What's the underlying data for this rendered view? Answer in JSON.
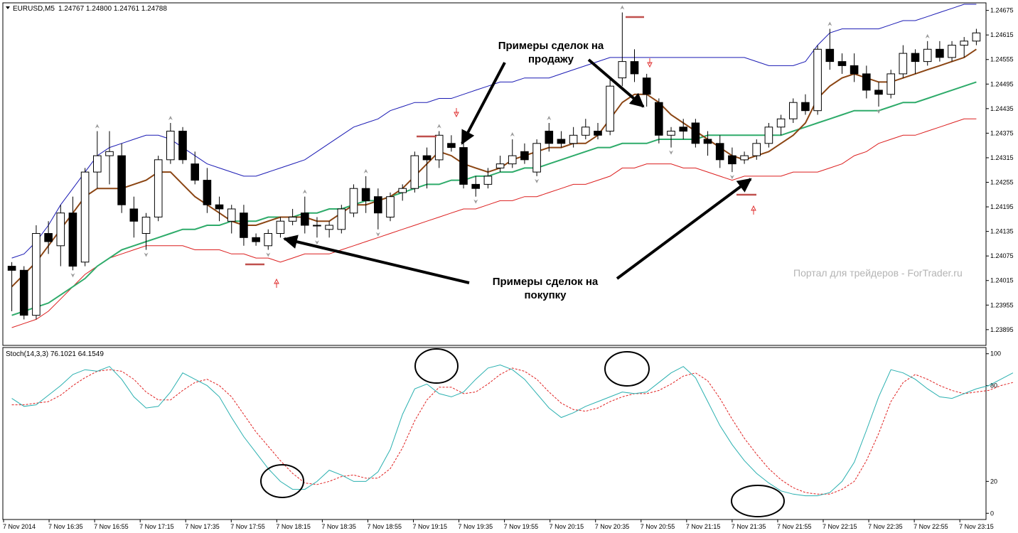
{
  "window": {
    "symbol_title": "EURUSD,M5",
    "ohlc_readout": "1.24767 1.24800 1.24761 1.24788",
    "watermark": "Портал для трейдеров - ForTrader.ru"
  },
  "annotations": {
    "sell_label_line1": "Примеры сделок на",
    "sell_label_line2": "продажу",
    "buy_label_line1": "Примеры сделок на",
    "buy_label_line2": "покупку"
  },
  "colors": {
    "upper_band": "#1a1ab4",
    "lower_band": "#dc1e1e",
    "ema_fast": "#8b4513",
    "ema_slow": "#2eab6a",
    "stoch_main": "#2ab0b0",
    "stoch_signal": "#e02020",
    "resistance_marker": "#c0504d",
    "arrow_sell": "#e03030",
    "arrow_buy": "#e03030",
    "candle_bull_fill": "#ffffff",
    "candle_bear_fill": "#000000"
  },
  "chart_data": [
    {
      "type": "candlestick",
      "title": "EURUSD,M5",
      "ylim": [
        1.2386,
        1.2469
      ],
      "y_ticks": [
        "1.24675",
        "1.24615",
        "1.24555",
        "1.24495",
        "1.24435",
        "1.24375",
        "1.24315",
        "1.24255",
        "1.24195",
        "1.24135",
        "1.24075",
        "1.24015",
        "1.23955",
        "1.23895"
      ],
      "x_ticks": [
        "7 Nov 2014",
        "7 Nov 16:35",
        "7 Nov 16:55",
        "7 Nov 17:15",
        "7 Nov 17:35",
        "7 Nov 17:55",
        "7 Nov 18:15",
        "7 Nov 18:35",
        "7 Nov 18:55",
        "7 Nov 19:15",
        "7 Nov 19:35",
        "7 Nov 19:55",
        "7 Nov 20:15",
        "7 Nov 20:35",
        "7 Nov 20:55",
        "7 Nov 21:15",
        "7 Nov 21:35",
        "7 Nov 21:55",
        "7 Nov 22:15",
        "7 Nov 22:35",
        "7 Nov 22:55",
        "7 Nov 23:15"
      ],
      "ohlc": [
        [
          1.2405,
          1.2406,
          1.2394,
          1.2404
        ],
        [
          1.2404,
          1.2405,
          1.2392,
          1.2393
        ],
        [
          1.2393,
          1.2415,
          1.2392,
          1.2413
        ],
        [
          1.2413,
          1.2416,
          1.2408,
          1.2411
        ],
        [
          1.241,
          1.242,
          1.2405,
          1.2418
        ],
        [
          1.2418,
          1.2422,
          1.2404,
          1.2405
        ],
        [
          1.2406,
          1.2429,
          1.2405,
          1.2428
        ],
        [
          1.2428,
          1.2438,
          1.2424,
          1.2432
        ],
        [
          1.2432,
          1.2438,
          1.2425,
          1.2433
        ],
        [
          1.2432,
          1.2435,
          1.2418,
          1.242
        ],
        [
          1.2419,
          1.2422,
          1.2412,
          1.2416
        ],
        [
          1.2413,
          1.2418,
          1.2409,
          1.2417
        ],
        [
          1.2417,
          1.2432,
          1.2416,
          1.2431
        ],
        [
          1.2431,
          1.244,
          1.243,
          1.2438
        ],
        [
          1.2438,
          1.2439,
          1.243,
          1.2431
        ],
        [
          1.243,
          1.2433,
          1.2425,
          1.2426
        ],
        [
          1.2426,
          1.2429,
          1.2418,
          1.242
        ],
        [
          1.242,
          1.2422,
          1.2416,
          1.2419
        ],
        [
          1.2416,
          1.242,
          1.2413,
          1.2419
        ],
        [
          1.2418,
          1.242,
          1.241,
          1.2412
        ],
        [
          1.2412,
          1.2413,
          1.241,
          1.2411
        ],
        [
          1.241,
          1.2414,
          1.2409,
          1.2413
        ],
        [
          1.2413,
          1.2417,
          1.2412,
          1.2416
        ],
        [
          1.2416,
          1.2419,
          1.2415,
          1.2417
        ],
        [
          1.2418,
          1.2422,
          1.2413,
          1.2415
        ],
        [
          1.2415,
          1.2417,
          1.2412,
          1.2415
        ],
        [
          1.2414,
          1.2416,
          1.2412,
          1.2415
        ],
        [
          1.2414,
          1.242,
          1.2413,
          1.2419
        ],
        [
          1.2418,
          1.2425,
          1.2417,
          1.2424
        ],
        [
          1.2424,
          1.2427,
          1.2418,
          1.2421
        ],
        [
          1.2422,
          1.2424,
          1.2414,
          1.2418
        ],
        [
          1.2417,
          1.2423,
          1.2416,
          1.2422
        ],
        [
          1.2423,
          1.2425,
          1.2421,
          1.2424
        ],
        [
          1.2424,
          1.2433,
          1.2423,
          1.2432
        ],
        [
          1.2432,
          1.2434,
          1.2424,
          1.2431
        ],
        [
          1.2431,
          1.2438,
          1.2429,
          1.2437
        ],
        [
          1.2435,
          1.2437,
          1.2433,
          1.2434
        ],
        [
          1.2434,
          1.2435,
          1.2424,
          1.2425
        ],
        [
          1.2425,
          1.2427,
          1.2422,
          1.2424
        ],
        [
          1.2425,
          1.2429,
          1.2424,
          1.2427
        ],
        [
          1.2429,
          1.2432,
          1.2428,
          1.243
        ],
        [
          1.243,
          1.2436,
          1.2429,
          1.2432
        ],
        [
          1.2433,
          1.2435,
          1.243,
          1.2431
        ],
        [
          1.2428,
          1.2436,
          1.2427,
          1.2435
        ],
        [
          1.2438,
          1.244,
          1.2433,
          1.2435
        ],
        [
          1.2436,
          1.2438,
          1.2434,
          1.2435
        ],
        [
          1.2435,
          1.2439,
          1.2434,
          1.2437
        ],
        [
          1.2437,
          1.2441,
          1.2436,
          1.2439
        ],
        [
          1.2438,
          1.244,
          1.2436,
          1.2437
        ],
        [
          1.2438,
          1.2451,
          1.2437,
          1.2449
        ],
        [
          1.2451,
          1.2467,
          1.2449,
          1.2455
        ],
        [
          1.2455,
          1.2458,
          1.245,
          1.2452
        ],
        [
          1.2451,
          1.2452,
          1.2444,
          1.2447
        ],
        [
          1.2445,
          1.2446,
          1.2435,
          1.2437
        ],
        [
          1.2437,
          1.2439,
          1.2434,
          1.2438
        ],
        [
          1.2439,
          1.2441,
          1.2436,
          1.2438
        ],
        [
          1.244,
          1.2441,
          1.2434,
          1.2435
        ],
        [
          1.2436,
          1.2438,
          1.2432,
          1.2435
        ],
        [
          1.2435,
          1.2437,
          1.2429,
          1.2431
        ],
        [
          1.2432,
          1.2434,
          1.2428,
          1.243
        ],
        [
          1.2431,
          1.2433,
          1.243,
          1.2432
        ],
        [
          1.2432,
          1.2436,
          1.2431,
          1.2435
        ],
        [
          1.2435,
          1.244,
          1.2434,
          1.2439
        ],
        [
          1.2439,
          1.2442,
          1.2437,
          1.2441
        ],
        [
          1.2441,
          1.2446,
          1.244,
          1.2445
        ],
        [
          1.2445,
          1.2447,
          1.2442,
          1.2443
        ],
        [
          1.2443,
          1.2459,
          1.2442,
          1.2458
        ],
        [
          1.2458,
          1.2463,
          1.2453,
          1.2455
        ],
        [
          1.2455,
          1.2457,
          1.2452,
          1.2454
        ],
        [
          1.2454,
          1.2457,
          1.245,
          1.2452
        ],
        [
          1.2452,
          1.2454,
          1.2446,
          1.2448
        ],
        [
          1.2448,
          1.245,
          1.2444,
          1.2447
        ],
        [
          1.2447,
          1.2453,
          1.2446,
          1.2452
        ],
        [
          1.2452,
          1.2459,
          1.2451,
          1.2457
        ],
        [
          1.2457,
          1.2458,
          1.2452,
          1.2455
        ],
        [
          1.2455,
          1.246,
          1.2454,
          1.2458
        ],
        [
          1.2458,
          1.246,
          1.2455,
          1.2456
        ],
        [
          1.2456,
          1.246,
          1.2455,
          1.2459
        ],
        [
          1.2459,
          1.2461,
          1.2456,
          1.246
        ],
        [
          1.246,
          1.2463,
          1.2459,
          1.2462
        ]
      ],
      "series": [
        {
          "values": [
            1.2407,
            1.2408,
            1.2411,
            1.2415,
            1.242,
            1.2424,
            1.2428,
            1.2432,
            1.2434,
            1.2435,
            1.2436,
            1.2437,
            1.2437,
            1.2436,
            1.2434,
            1.2432,
            1.243,
            1.2429,
            1.2428,
            1.2427,
            1.2427,
            1.2428,
            1.2429,
            1.243,
            1.2431,
            1.2433,
            1.2435,
            1.2437,
            1.2439,
            1.244,
            1.2441,
            1.2443,
            1.2444,
            1.2445,
            1.2445,
            1.2446,
            1.2446,
            1.2447,
            1.2448,
            1.2449,
            1.245,
            1.245,
            1.2451,
            1.2451,
            1.2451,
            1.2452,
            1.2453,
            1.2454,
            1.2455,
            1.2456,
            1.2456,
            1.2456,
            1.2456,
            1.2456,
            1.2456,
            1.2456,
            1.2456,
            1.2456,
            1.2456,
            1.2456,
            1.2456,
            1.2455,
            1.2454,
            1.2454,
            1.2454,
            1.2455,
            1.2459,
            1.2462,
            1.2463,
            1.2463,
            1.2463,
            1.2463,
            1.2464,
            1.2465,
            1.2465,
            1.2466,
            1.2467,
            1.2468,
            1.2469,
            1.2469
          ]
        },
        {
          "values": [
            1.239,
            1.2391,
            1.2392,
            1.2394,
            1.2397,
            1.24,
            1.2403,
            1.2405,
            1.2407,
            1.2408,
            1.2409,
            1.241,
            1.241,
            1.241,
            1.241,
            1.2409,
            1.2409,
            1.2409,
            1.2408,
            1.2408,
            1.2407,
            1.2407,
            1.2406,
            1.2407,
            1.2408,
            1.2408,
            1.2408,
            1.2409,
            1.241,
            1.2411,
            1.2412,
            1.2413,
            1.2414,
            1.2415,
            1.2416,
            1.2417,
            1.2418,
            1.2419,
            1.2419,
            1.242,
            1.2421,
            1.2421,
            1.2422,
            1.2422,
            1.2423,
            1.2424,
            1.2425,
            1.2425,
            1.2426,
            1.2427,
            1.2429,
            1.2429,
            1.243,
            1.243,
            1.243,
            1.2429,
            1.2429,
            1.2428,
            1.2427,
            1.2426,
            1.2427,
            1.2427,
            1.2427,
            1.2427,
            1.2428,
            1.2428,
            1.2428,
            1.2429,
            1.243,
            1.2432,
            1.2433,
            1.2435,
            1.2436,
            1.2437,
            1.2437,
            1.2438,
            1.2439,
            1.244,
            1.2441,
            1.2441
          ]
        },
        {
          "values": [
            1.24,
            1.2403,
            1.2406,
            1.241,
            1.2414,
            1.2418,
            1.2422,
            1.2424,
            1.2424,
            1.2424,
            1.2425,
            1.2426,
            1.2428,
            1.2428,
            1.2425,
            1.2422,
            1.242,
            1.2418,
            1.2416,
            1.2415,
            1.2415,
            1.2416,
            1.2417,
            1.2417,
            1.2417,
            1.2416,
            1.2416,
            1.2418,
            1.242,
            1.242,
            1.2421,
            1.2422,
            1.2424,
            1.2427,
            1.243,
            1.2433,
            1.2432,
            1.243,
            1.2429,
            1.2428,
            1.2429,
            1.2431,
            1.2432,
            1.2433,
            1.2434,
            1.2434,
            1.2435,
            1.2435,
            1.2437,
            1.2441,
            1.2445,
            1.2447,
            1.2447,
            1.2445,
            1.2442,
            1.244,
            1.2438,
            1.2436,
            1.2434,
            1.2432,
            1.2431,
            1.2432,
            1.2433,
            1.2435,
            1.2437,
            1.244,
            1.2446,
            1.2449,
            1.2451,
            1.2452,
            1.2451,
            1.245,
            1.245,
            1.2451,
            1.2452,
            1.2453,
            1.2454,
            1.2455,
            1.2456,
            1.2458
          ]
        },
        {
          "values": [
            1.2393,
            1.2394,
            1.2395,
            1.2396,
            1.2398,
            1.24,
            1.2402,
            1.2405,
            1.2407,
            1.2409,
            1.241,
            1.2411,
            1.2412,
            1.2413,
            1.2414,
            1.2414,
            1.2415,
            1.2415,
            1.2416,
            1.2416,
            1.2416,
            1.2417,
            1.2417,
            1.2417,
            1.2418,
            1.2418,
            1.2419,
            1.2419,
            1.242,
            1.2421,
            1.2421,
            1.2422,
            1.2423,
            1.2424,
            1.2425,
            1.2425,
            1.2426,
            1.2426,
            1.2427,
            1.2427,
            1.2428,
            1.2428,
            1.2429,
            1.2429,
            1.243,
            1.2431,
            1.2432,
            1.2433,
            1.2434,
            1.2434,
            1.2435,
            1.2435,
            1.2435,
            1.2436,
            1.2436,
            1.2436,
            1.2436,
            1.2437,
            1.2437,
            1.2437,
            1.2437,
            1.2437,
            1.2437,
            1.2437,
            1.2438,
            1.2439,
            1.244,
            1.2441,
            1.2442,
            1.2443,
            1.2443,
            1.2443,
            1.2444,
            1.2445,
            1.2445,
            1.2446,
            1.2447,
            1.2448,
            1.2449,
            1.245
          ]
        }
      ]
    },
    {
      "type": "line",
      "title": "Stoch(14,3,3) 76.1021 64.1549",
      "ylim": [
        -3,
        103
      ],
      "y_ticks": [
        "100",
        "80",
        "20",
        "0"
      ],
      "series": [
        {
          "values": [
            72,
            67,
            68,
            74,
            80,
            87,
            90,
            89,
            92,
            84,
            73,
            66,
            67,
            76,
            88,
            84,
            80,
            73,
            60,
            48,
            38,
            28,
            20,
            15,
            15,
            20,
            27,
            24,
            20,
            20,
            26,
            40,
            62,
            78,
            81,
            75,
            73,
            76,
            84,
            91,
            93,
            90,
            84,
            75,
            66,
            60,
            63,
            67,
            70,
            73,
            76,
            75,
            76,
            82,
            88,
            92,
            85,
            70,
            55,
            43,
            33,
            25,
            19,
            14,
            12,
            11,
            11,
            13,
            20,
            32,
            52,
            73,
            90,
            88,
            84,
            78,
            73,
            72,
            75,
            78,
            80,
            84,
            88
          ]
        },
        {
          "values": [
            68,
            68,
            69,
            70,
            74,
            80,
            85,
            89,
            90,
            89,
            84,
            76,
            71,
            71,
            77,
            82,
            84,
            80,
            73,
            62,
            51,
            42,
            33,
            25,
            19,
            18,
            20,
            23,
            24,
            22,
            22,
            28,
            41,
            58,
            71,
            79,
            79,
            75,
            76,
            81,
            87,
            91,
            89,
            84,
            76,
            69,
            65,
            64,
            66,
            70,
            73,
            75,
            75,
            77,
            81,
            86,
            88,
            83,
            72,
            59,
            47,
            37,
            28,
            21,
            16,
            13,
            12,
            12,
            15,
            20,
            33,
            50,
            70,
            82,
            87,
            84,
            80,
            77,
            75,
            76,
            77,
            80,
            82
          ]
        }
      ]
    }
  ]
}
